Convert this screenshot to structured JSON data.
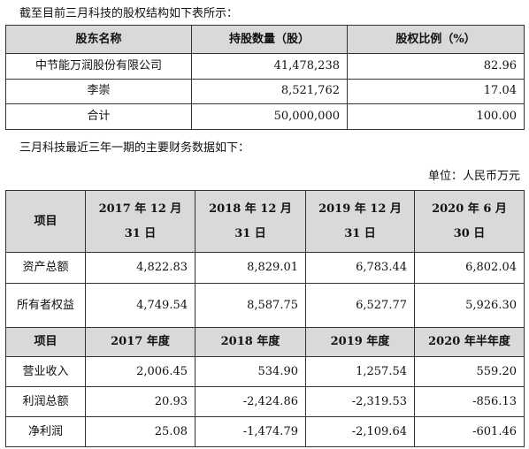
{
  "intro": "截至目前三月科技的股权结构如下表所示：",
  "table1": {
    "header": [
      "股东名称",
      "持股数量（股）",
      "股权比例（%）"
    ],
    "rows": [
      [
        "中节能万润股份有限公司",
        "41,478,238",
        "82.96"
      ],
      [
        "李崇",
        "8,521,762",
        "17.04"
      ],
      [
        "合计",
        "50,000,000",
        "100.00"
      ]
    ]
  },
  "intro2": "三月科技最近三年一期的主要财务数据如下：",
  "unit": "单位：人民币万元",
  "table2": {
    "header": [
      "项目",
      "2017 年 12 月 31 日",
      "2018 年 12 月 31 日",
      "2019 年 12 月 31 日",
      "2020 年 6 月 30 日"
    ],
    "rows": [
      [
        "资产总额",
        "4,822.83",
        "8,829.01",
        "6,783.44",
        "6,802.04"
      ],
      [
        "所有者权益",
        "4,749.54",
        "8,587.75",
        "6,527.77",
        "5,926.30"
      ]
    ],
    "subheader": [
      "项目",
      "2017 年度",
      "2018 年度",
      "2019 年度",
      "2020 年半年度"
    ],
    "rows2": [
      [
        "营业收入",
        "2,006.45",
        "534.90",
        "1,257.54",
        "559.20"
      ],
      [
        "利润总额",
        "20.93",
        "-2,424.86",
        "-2,319.53",
        "-856.13"
      ],
      [
        "净利润",
        "25.08",
        "-1,474.79",
        "-2,109.64",
        "-601.46"
      ]
    ]
  }
}
